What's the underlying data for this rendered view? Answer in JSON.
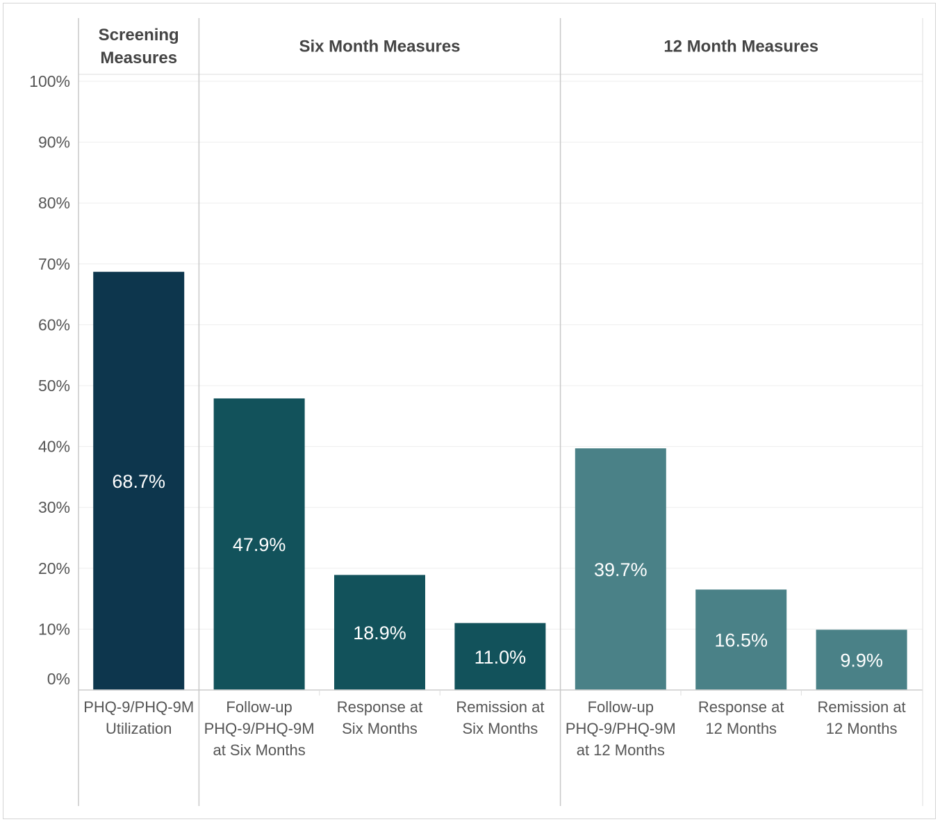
{
  "chart_data": {
    "type": "bar",
    "title": "",
    "xlabel": "",
    "ylabel": "",
    "ylim": [
      0,
      100
    ],
    "yticks": [
      "0%",
      "10%",
      "20%",
      "30%",
      "40%",
      "50%",
      "60%",
      "70%",
      "80%",
      "90%",
      "100%"
    ],
    "grid": true,
    "groups": [
      {
        "name": [
          "Screening",
          "Measures"
        ],
        "color": "#0d364d",
        "bars": [
          {
            "label": [
              "PHQ-9/PHQ-9M",
              "Utilization"
            ],
            "value": 68.7,
            "value_label": "68.7%"
          }
        ]
      },
      {
        "name": [
          "Six Month Measures"
        ],
        "color": "#12525b",
        "bars": [
          {
            "label": [
              "Follow-up",
              "PHQ-9/PHQ-9M",
              "at Six Months"
            ],
            "value": 47.9,
            "value_label": "47.9%"
          },
          {
            "label": [
              "Response at",
              "Six Months"
            ],
            "value": 18.9,
            "value_label": "18.9%"
          },
          {
            "label": [
              "Remission at",
              "Six Months"
            ],
            "value": 11.0,
            "value_label": "11.0%"
          }
        ]
      },
      {
        "name": [
          "12 Month Measures"
        ],
        "color": "#4a8187",
        "bars": [
          {
            "label": [
              "Follow-up",
              "PHQ-9/PHQ-9M",
              "at 12 Months"
            ],
            "value": 39.7,
            "value_label": "39.7%"
          },
          {
            "label": [
              "Response at",
              "12 Months"
            ],
            "value": 16.5,
            "value_label": "16.5%"
          },
          {
            "label": [
              "Remission at",
              "12 Months"
            ],
            "value": 9.9,
            "value_label": "9.9%"
          }
        ]
      }
    ]
  }
}
